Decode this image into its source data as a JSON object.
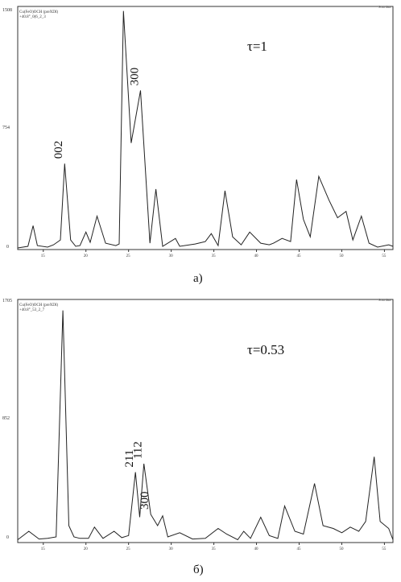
{
  "chart_data": [
    {
      "type": "line",
      "panel_label": "а)",
      "legend": [
        "Cu(FeO)OCH (preXDI)",
        "+40.8°_0(6_2_3"
      ],
      "top_right_label": "Scan data",
      "tau_label": "τ=1",
      "y_ticks": [
        "1508",
        "754",
        "0"
      ],
      "y_max": 1508,
      "x_min": 12,
      "x_max": 56,
      "x_ticks": [
        "15",
        "20",
        "25",
        "30",
        "35",
        "40",
        "45",
        "50",
        "55"
      ],
      "series": [
        {
          "x": [
            12.0,
            13.2,
            13.8,
            14.3,
            15.5,
            16.2,
            17.0,
            17.5,
            18.2,
            18.8,
            19.3,
            20.0,
            20.5,
            21.3,
            22.3,
            23.5,
            23.9,
            24.4,
            25.3,
            26.4,
            27.5,
            28.2,
            29.0,
            30.5,
            31.0,
            32.8,
            34.0,
            34.7,
            35.5,
            36.3,
            37.2,
            38.2,
            39.2,
            40.5,
            41.5,
            42.0,
            43.0,
            44.0,
            44.7,
            45.5,
            46.3,
            47.3,
            48.5,
            49.5,
            50.5,
            51.3,
            52.3,
            53.2,
            54.2,
            55.5,
            56.0
          ],
          "y": [
            10,
            20,
            150,
            25,
            15,
            30,
            60,
            540,
            60,
            20,
            25,
            110,
            45,
            210,
            40,
            25,
            35,
            1500,
            670,
            1000,
            40,
            380,
            20,
            70,
            20,
            35,
            50,
            100,
            25,
            370,
            80,
            30,
            110,
            40,
            30,
            40,
            70,
            50,
            440,
            190,
            80,
            460,
            310,
            200,
            240,
            60,
            210,
            40,
            15,
            30,
            20
          ]
        }
      ],
      "peak_annotations": [
        {
          "text": "002",
          "x": 17.5,
          "y": 540
        },
        {
          "text": "300",
          "x": 26.4,
          "y": 1000
        }
      ]
    },
    {
      "type": "line",
      "panel_label": "б)",
      "legend": [
        "Cu(FeO)OCH (preXDI)",
        "+40.8°_53_2_7"
      ],
      "top_right_label": "Scan data",
      "tau_label": "τ=0.53",
      "y_ticks": [
        "1705",
        "852",
        "0"
      ],
      "y_max": 1705,
      "x_min": 12,
      "x_max": 56,
      "x_ticks": [
        "15",
        "20",
        "25",
        "30",
        "35",
        "40",
        "45",
        "50",
        "55"
      ],
      "series": [
        {
          "x": [
            12.0,
            13.3,
            14.5,
            15.5,
            16.5,
            17.3,
            18.0,
            18.6,
            19.3,
            20.3,
            21.0,
            22.0,
            23.3,
            24.2,
            25.0,
            25.8,
            26.3,
            26.8,
            27.6,
            28.4,
            29.0,
            29.6,
            31.0,
            32.5,
            34.0,
            35.5,
            36.5,
            37.8,
            38.5,
            39.3,
            40.5,
            41.5,
            42.5,
            43.3,
            44.5,
            45.5,
            46.8,
            47.8,
            49.0,
            50.0,
            51.0,
            52.0,
            52.8,
            53.8,
            54.5,
            55.5,
            56.0
          ],
          "y": [
            20,
            80,
            25,
            30,
            40,
            1650,
            120,
            40,
            30,
            30,
            110,
            30,
            80,
            35,
            50,
            500,
            180,
            560,
            200,
            120,
            190,
            40,
            70,
            25,
            30,
            100,
            60,
            20,
            80,
            30,
            180,
            50,
            30,
            260,
            80,
            60,
            420,
            120,
            100,
            70,
            110,
            80,
            150,
            610,
            150,
            100,
            20
          ]
        }
      ],
      "peak_annotations": [
        {
          "text": "211",
          "x": 25.8,
          "y": 500
        },
        {
          "text": "112",
          "x": 26.8,
          "y": 560
        },
        {
          "text": "300",
          "x": 27.6,
          "y": 200
        }
      ]
    }
  ]
}
